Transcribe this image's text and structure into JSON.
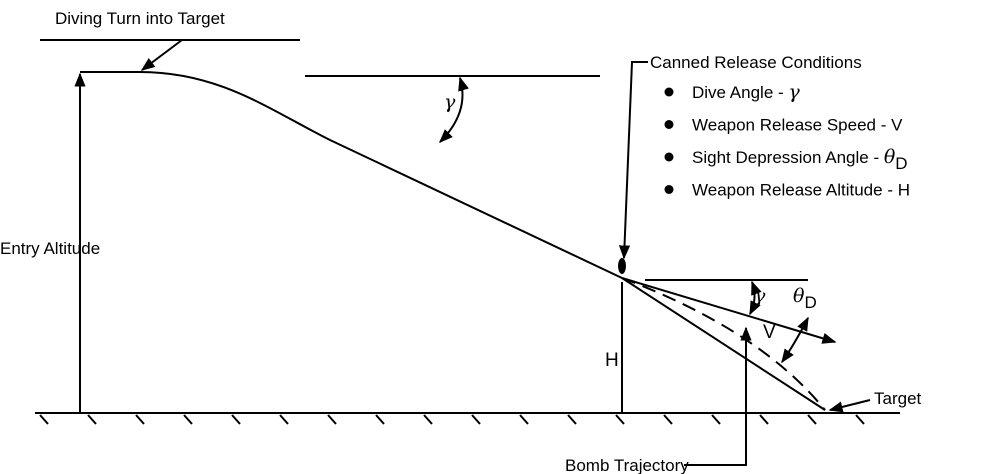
{
  "title": "Diving Turn into Target",
  "release": {
    "heading": "Canned Release Conditions",
    "bullets": [
      {
        "text": "Dive Angle - ",
        "symbol": "γ"
      },
      {
        "text": "Weapon Release Speed - V"
      },
      {
        "text": "Sight Depression Angle - ",
        "symbol": "θ",
        "subscript": "D"
      },
      {
        "text": "Weapon Release Altitude - H"
      }
    ]
  },
  "labels": {
    "entry_altitude": "Entry Altitude",
    "release_altitude": "H",
    "dive_angle_upper": "γ",
    "dive_angle_lower": "γ",
    "sight_angle": {
      "symbol": "θ",
      "subscript": "D"
    },
    "speed": "V",
    "target": "Target",
    "bomb_trajectory": "Bomb Trajectory"
  }
}
